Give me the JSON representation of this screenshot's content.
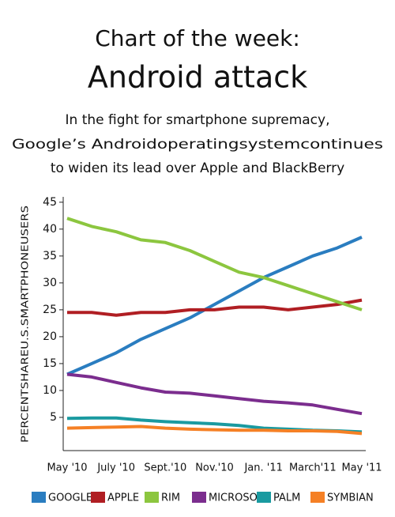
{
  "chart_data": {
    "type": "line",
    "title": "Chart of the week:",
    "subtitle": "Android attack",
    "description": [
      "In the fight for smartphone supremacy,",
      "Google’s Androidoperatingsystemcontinues",
      "to widen its lead over Apple and BlackBerry"
    ],
    "y_label": "PERCENTSHAREU.S.SMARTPHONEUSERS",
    "categories": [
      "May '10",
      null,
      "July '10",
      null,
      "Sept.'10",
      null,
      "Nov.'10",
      null,
      "Jan. '11",
      null,
      "March'11",
      null,
      "May '11"
    ],
    "ylim": [
      0,
      46
    ],
    "yticks": [
      5,
      10,
      15,
      20,
      25,
      30,
      35,
      40,
      45
    ],
    "grid": false,
    "series": [
      {
        "name": "GOOGLE",
        "color": "#2a7dc0",
        "values": [
          13,
          15,
          17,
          19.5,
          21.5,
          23.5,
          26,
          28.5,
          31,
          33,
          35,
          36.5,
          38.5
        ]
      },
      {
        "name": "APPLE",
        "color": "#b01e23",
        "values": [
          24.5,
          24.5,
          24,
          24.5,
          24.5,
          25,
          25,
          25.5,
          25.5,
          25,
          25.5,
          26,
          26.8
        ]
      },
      {
        "name": "RIM",
        "color": "#8cc63f",
        "values": [
          42,
          40.5,
          39.5,
          38,
          37.5,
          36,
          34,
          32,
          31,
          29.5,
          28,
          26.5,
          25
        ]
      },
      {
        "name": "MICROSOF",
        "color": "#7b2d8e",
        "values": [
          13,
          12.5,
          11.5,
          10.5,
          9.7,
          9.5,
          9,
          8.5,
          8,
          7.7,
          7.3,
          6.5,
          5.7
        ]
      },
      {
        "name": "PALM",
        "color": "#1a9aa0",
        "values": [
          4.8,
          4.9,
          4.9,
          4.5,
          4.2,
          4,
          3.8,
          3.5,
          3,
          2.8,
          2.6,
          2.5,
          2.3
        ]
      },
      {
        "name": "SYMBIAN",
        "color": "#f58025",
        "values": [
          3,
          3.1,
          3.2,
          3.3,
          3,
          2.8,
          2.7,
          2.6,
          2.6,
          2.5,
          2.5,
          2.4,
          2
        ]
      }
    ]
  }
}
